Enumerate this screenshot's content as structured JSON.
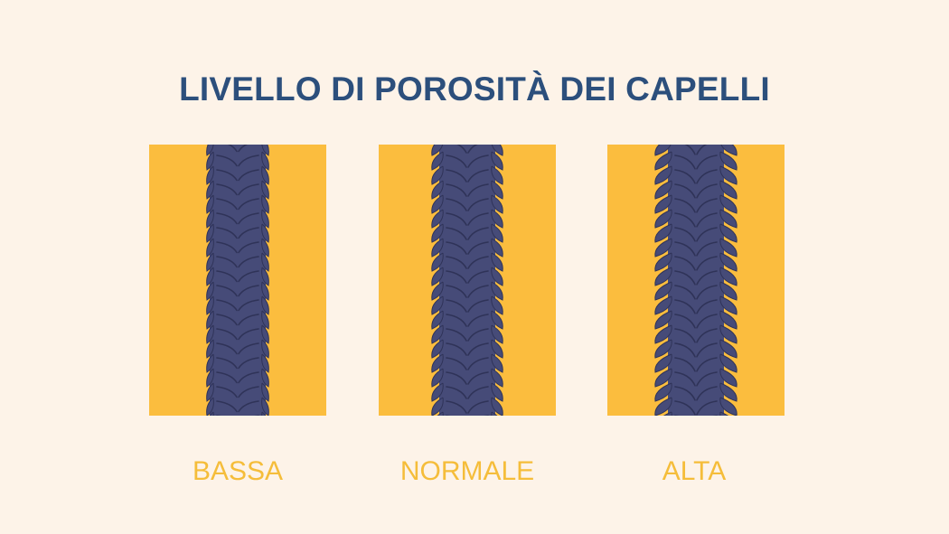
{
  "title": "LIVELLO DI POROSITÀ DEI CAPELLI",
  "colors": {
    "background": "#fdf3e8",
    "title": "#2c4f7c",
    "panel": "#fbbd3e",
    "hair": "#464b78",
    "hair_dark": "#2f3358",
    "label": "#f5bd3a"
  },
  "levels": [
    {
      "label": "BASSA",
      "cuticle": "closed"
    },
    {
      "label": "NORMALE",
      "cuticle": "slightly-open"
    },
    {
      "label": "ALTA",
      "cuticle": "open"
    }
  ]
}
